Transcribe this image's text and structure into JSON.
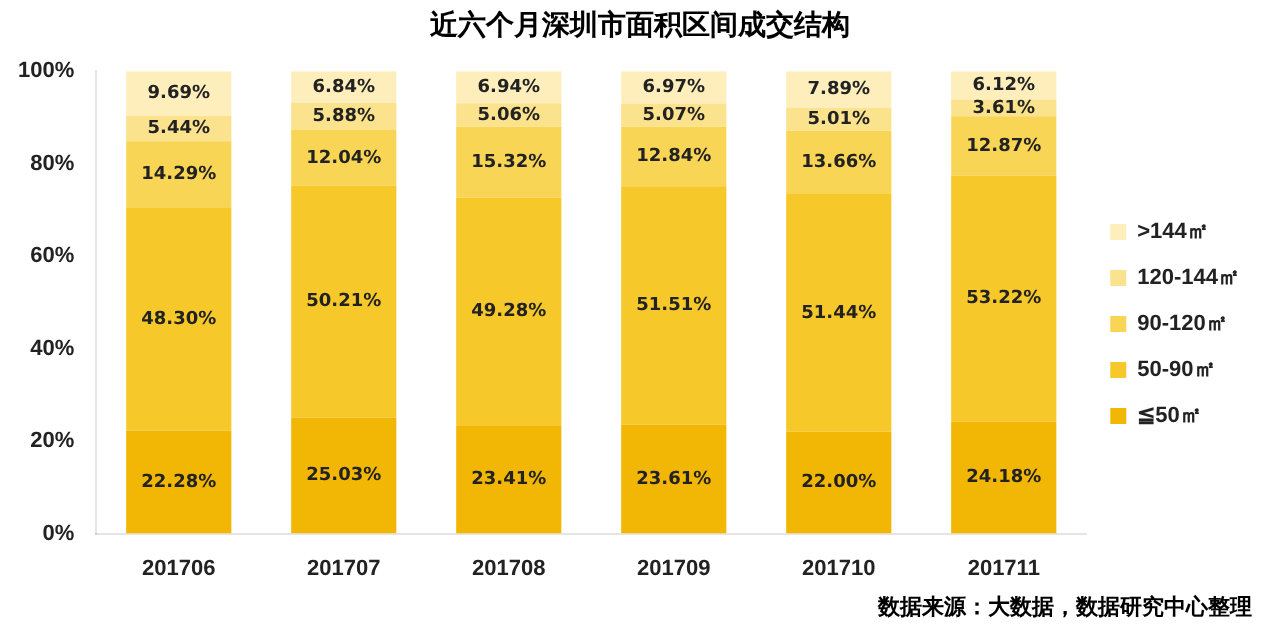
{
  "chart_data": {
    "type": "bar",
    "stacked": true,
    "title": "近六个月深圳市面积区间成交结构",
    "categories": [
      "201706",
      "201707",
      "201708",
      "201709",
      "201710",
      "201711"
    ],
    "series": [
      {
        "name": "≦50㎡",
        "color": "#f2b705",
        "values": [
          22.28,
          25.03,
          23.41,
          23.61,
          22.0,
          24.18
        ],
        "value_labels": [
          "22.28%",
          "25.03%",
          "23.41%",
          "23.61%",
          "22.00%",
          "24.18%"
        ]
      },
      {
        "name": "50-90㎡",
        "color": "#f7c82a",
        "values": [
          48.3,
          50.21,
          49.28,
          51.51,
          51.44,
          53.22
        ],
        "value_labels": [
          "48.30%",
          "50.21%",
          "49.28%",
          "51.51%",
          "51.44%",
          "53.22%"
        ]
      },
      {
        "name": "90-120㎡",
        "color": "#f9d556",
        "values": [
          14.29,
          12.04,
          15.32,
          12.84,
          13.66,
          12.87
        ],
        "value_labels": [
          "14.29%",
          "12.04%",
          "15.32%",
          "12.84%",
          "13.66%",
          "12.87%"
        ]
      },
      {
        "name": "120-144㎡",
        "color": "#fbe38e",
        "values": [
          5.44,
          5.88,
          5.06,
          5.07,
          5.01,
          3.61
        ],
        "value_labels": [
          "5.44%",
          "5.88%",
          "5.06%",
          "5.07%",
          "5.01%",
          "3.61%"
        ]
      },
      {
        "name": ">144㎡",
        "color": "#fdeebb",
        "values": [
          9.69,
          6.84,
          6.94,
          6.97,
          7.89,
          6.12
        ],
        "value_labels": [
          "9.69%",
          "6.84%",
          "6.94%",
          "6.97%",
          "7.89%",
          "6.12%"
        ]
      }
    ],
    "ylim": [
      0,
      100
    ],
    "yticks": [
      {
        "value": 0,
        "label": "0%"
      },
      {
        "value": 20,
        "label": "20%"
      },
      {
        "value": 40,
        "label": "40%"
      },
      {
        "value": 60,
        "label": "60%"
      },
      {
        "value": 80,
        "label": "80%"
      },
      {
        "value": 100,
        "label": "100%"
      }
    ],
    "grid": false,
    "legend": "right",
    "annotations": [
      "数据来源：大数据，数据研究中心整理"
    ]
  }
}
